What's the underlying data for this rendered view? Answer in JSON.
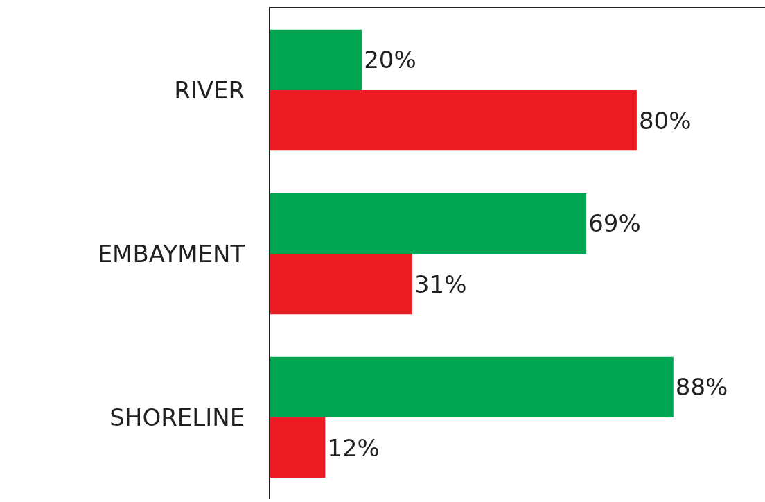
{
  "chart_data": {
    "type": "bar",
    "orientation": "horizontal",
    "categories": [
      "RIVER",
      "EMBAYMENT",
      "SHORELINE"
    ],
    "series": [
      {
        "color": "#00a651",
        "values": [
          20,
          69,
          88
        ],
        "value_labels": [
          "20%",
          "69%",
          "88%"
        ]
      },
      {
        "color": "#ed1c24",
        "values": [
          80,
          31,
          12
        ],
        "value_labels": [
          "80%",
          "31%",
          "12%"
        ]
      }
    ],
    "xlim": [
      0,
      108
    ],
    "tick_labels": "y"
  }
}
